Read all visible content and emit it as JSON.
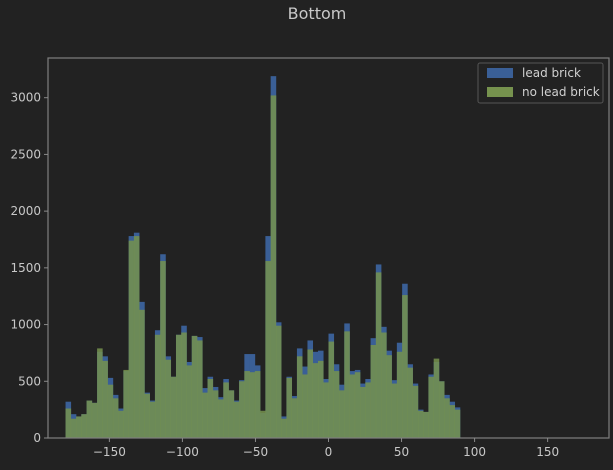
{
  "chart_data": {
    "type": "bar",
    "title": "Bottom",
    "xlabel": "",
    "ylabel": "",
    "xlim": [
      -192,
      192
    ],
    "ylim": [
      0,
      3350
    ],
    "bin_width": 3.6,
    "bin_start": -180,
    "xticks": [
      -150,
      -100,
      -50,
      0,
      50,
      100,
      150
    ],
    "yticks": [
      0,
      500,
      1000,
      1500,
      2000,
      2500,
      3000
    ],
    "legend_position": "top-right",
    "grid": false,
    "colors": {
      "background": "#222222",
      "frame": "#7f7f7f",
      "lead_brick": "#3a5f96",
      "no_lead_brick": "#76924e",
      "overlap": "#6f8f59",
      "text": "#c8c8c8"
    },
    "series": [
      {
        "name": "lead brick",
        "values": [
          320,
          210,
          190,
          210,
          330,
          310,
          760,
          720,
          530,
          380,
          260,
          590,
          1780,
          1810,
          1200,
          400,
          330,
          950,
          1620,
          720,
          540,
          910,
          990,
          670,
          900,
          890,
          440,
          540,
          450,
          360,
          520,
          420,
          330,
          510,
          740,
          740,
          640,
          220,
          1780,
          3190,
          1020,
          190,
          540,
          370,
          790,
          630,
          860,
          760,
          770,
          520,
          920,
          650,
          470,
          1010,
          590,
          600,
          480,
          520,
          880,
          1530,
          980,
          770,
          510,
          840,
          1360,
          650,
          480,
          250,
          230,
          560,
          670,
          500,
          380,
          320,
          270
        ],
        "overlay_values": [
          260,
          170,
          190,
          210,
          330,
          310,
          790,
          680,
          470,
          350,
          240,
          600,
          1740,
          1780,
          1130,
          390,
          320,
          910,
          1560,
          690,
          540,
          910,
          930,
          640,
          900,
          860,
          400,
          520,
          420,
          340,
          490,
          420,
          320,
          500,
          590,
          580,
          590,
          240,
          1560,
          3020,
          990,
          170,
          530,
          350,
          720,
          560,
          780,
          660,
          680,
          490,
          850,
          590,
          420,
          940,
          560,
          580,
          450,
          490,
          820,
          1460,
          930,
          730,
          480,
          760,
          1260,
          620,
          460,
          240,
          230,
          540,
          700,
          500,
          350,
          290,
          250
        ]
      },
      {
        "name": "no lead brick",
        "values": [
          260,
          170,
          190,
          210,
          330,
          310,
          790,
          680,
          470,
          350,
          240,
          600,
          1740,
          1780,
          1130,
          390,
          320,
          910,
          1560,
          690,
          540,
          910,
          930,
          640,
          900,
          860,
          400,
          520,
          420,
          340,
          490,
          420,
          320,
          500,
          590,
          580,
          590,
          240,
          1560,
          3020,
          990,
          170,
          530,
          350,
          720,
          560,
          780,
          660,
          680,
          490,
          850,
          590,
          420,
          940,
          560,
          580,
          450,
          490,
          820,
          1460,
          930,
          730,
          480,
          760,
          1260,
          620,
          460,
          240,
          230,
          540,
          700,
          500,
          350,
          290,
          250
        ]
      }
    ]
  }
}
